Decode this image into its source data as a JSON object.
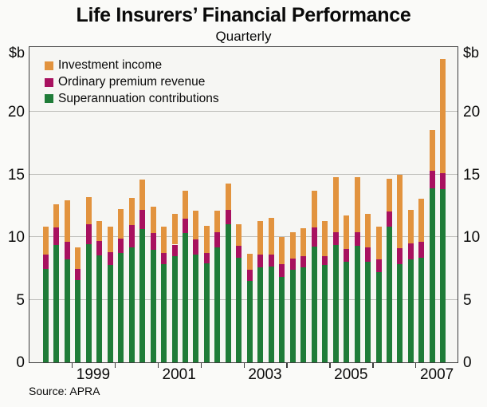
{
  "page": {
    "title": "Life Insurers’ Financial Performance",
    "subtitle": "Quarterly",
    "source": "Source: APRA"
  },
  "axes": {
    "unit_label": "$b",
    "y_ticks": [
      0,
      5,
      10,
      15,
      20
    ],
    "gridline_values": [
      5,
      10,
      15,
      20
    ],
    "x_year_labels": [
      "1999",
      "2001",
      "2003",
      "2005",
      "2007"
    ]
  },
  "legend": [
    {
      "label": "Investment income",
      "color": "#E2933E"
    },
    {
      "label": "Ordinary premium revenue",
      "color": "#A8115F"
    },
    {
      "label": "Superannuation contributions",
      "color": "#1F7C38"
    }
  ],
  "colors": {
    "investment_income": "#E2933E",
    "ordinary_premium_revenue": "#A8115F",
    "superannuation_contributions": "#1F7C38",
    "gridline": "#BEBEBA",
    "axis_frame": "#3C3C3C",
    "plot_background": "#F6F6F3",
    "page_background": "#FAFAF8"
  },
  "chart_data": {
    "type": "bar",
    "stacked": true,
    "title": "Life Insurers’ Financial Performance",
    "subtitle": "Quarterly",
    "ylabel": "$b",
    "ylim": [
      0,
      25.1
    ],
    "grid": true,
    "legend_position": "top-left-inside",
    "categories": [
      "1998Q2",
      "1998Q3",
      "1998Q4",
      "1999Q1",
      "1999Q2",
      "1999Q3",
      "1999Q4",
      "2000Q1",
      "2000Q2",
      "2000Q3",
      "2000Q4",
      "2001Q1",
      "2001Q2",
      "2001Q3",
      "2001Q4",
      "2002Q1",
      "2002Q2",
      "2002Q3",
      "2002Q4",
      "2003Q1",
      "2003Q2",
      "2003Q3",
      "2003Q4",
      "2004Q1",
      "2004Q2",
      "2004Q3",
      "2004Q4",
      "2005Q1",
      "2005Q2",
      "2005Q3",
      "2005Q4",
      "2006Q1",
      "2006Q2",
      "2006Q3",
      "2006Q4",
      "2007Q1",
      "2007Q2",
      "2007Q3"
    ],
    "series": [
      {
        "name": "Superannuation contributions",
        "color": "#1F7C38",
        "values": [
          7.45,
          9.35,
          8.2,
          6.55,
          9.45,
          8.55,
          7.8,
          8.7,
          9.2,
          10.65,
          9.0,
          7.85,
          8.45,
          10.35,
          8.6,
          7.9,
          9.2,
          11.05,
          8.35,
          6.5,
          7.6,
          7.65,
          6.85,
          7.4,
          7.6,
          9.25,
          7.8,
          9.35,
          8.05,
          9.3,
          8.05,
          7.2,
          10.85,
          7.85,
          8.25,
          8.35,
          13.9,
          13.85
        ]
      },
      {
        "name": "Ordinary premium revenue",
        "color": "#A8115F",
        "values": [
          1.15,
          1.45,
          1.45,
          0.9,
          1.55,
          1.15,
          1.0,
          1.2,
          1.75,
          1.5,
          1.3,
          0.9,
          0.95,
          1.15,
          1.2,
          0.85,
          1.2,
          1.1,
          0.95,
          0.9,
          1.0,
          0.95,
          1.0,
          0.9,
          0.9,
          1.55,
          0.7,
          1.05,
          1.0,
          1.1,
          1.1,
          1.05,
          1.2,
          1.25,
          1.25,
          1.25,
          1.4,
          1.25
        ]
      },
      {
        "name": "Investment income",
        "color": "#E2933E",
        "values": [
          2.25,
          1.85,
          3.3,
          1.7,
          2.2,
          1.6,
          2.05,
          2.35,
          2.2,
          2.45,
          2.15,
          2.1,
          2.45,
          2.2,
          2.3,
          2.15,
          1.7,
          2.15,
          1.75,
          1.25,
          2.65,
          2.95,
          2.15,
          2.1,
          2.2,
          2.9,
          2.75,
          4.4,
          2.7,
          4.35,
          2.7,
          2.6,
          2.6,
          5.9,
          2.7,
          3.45,
          3.25,
          9.1
        ]
      }
    ]
  }
}
